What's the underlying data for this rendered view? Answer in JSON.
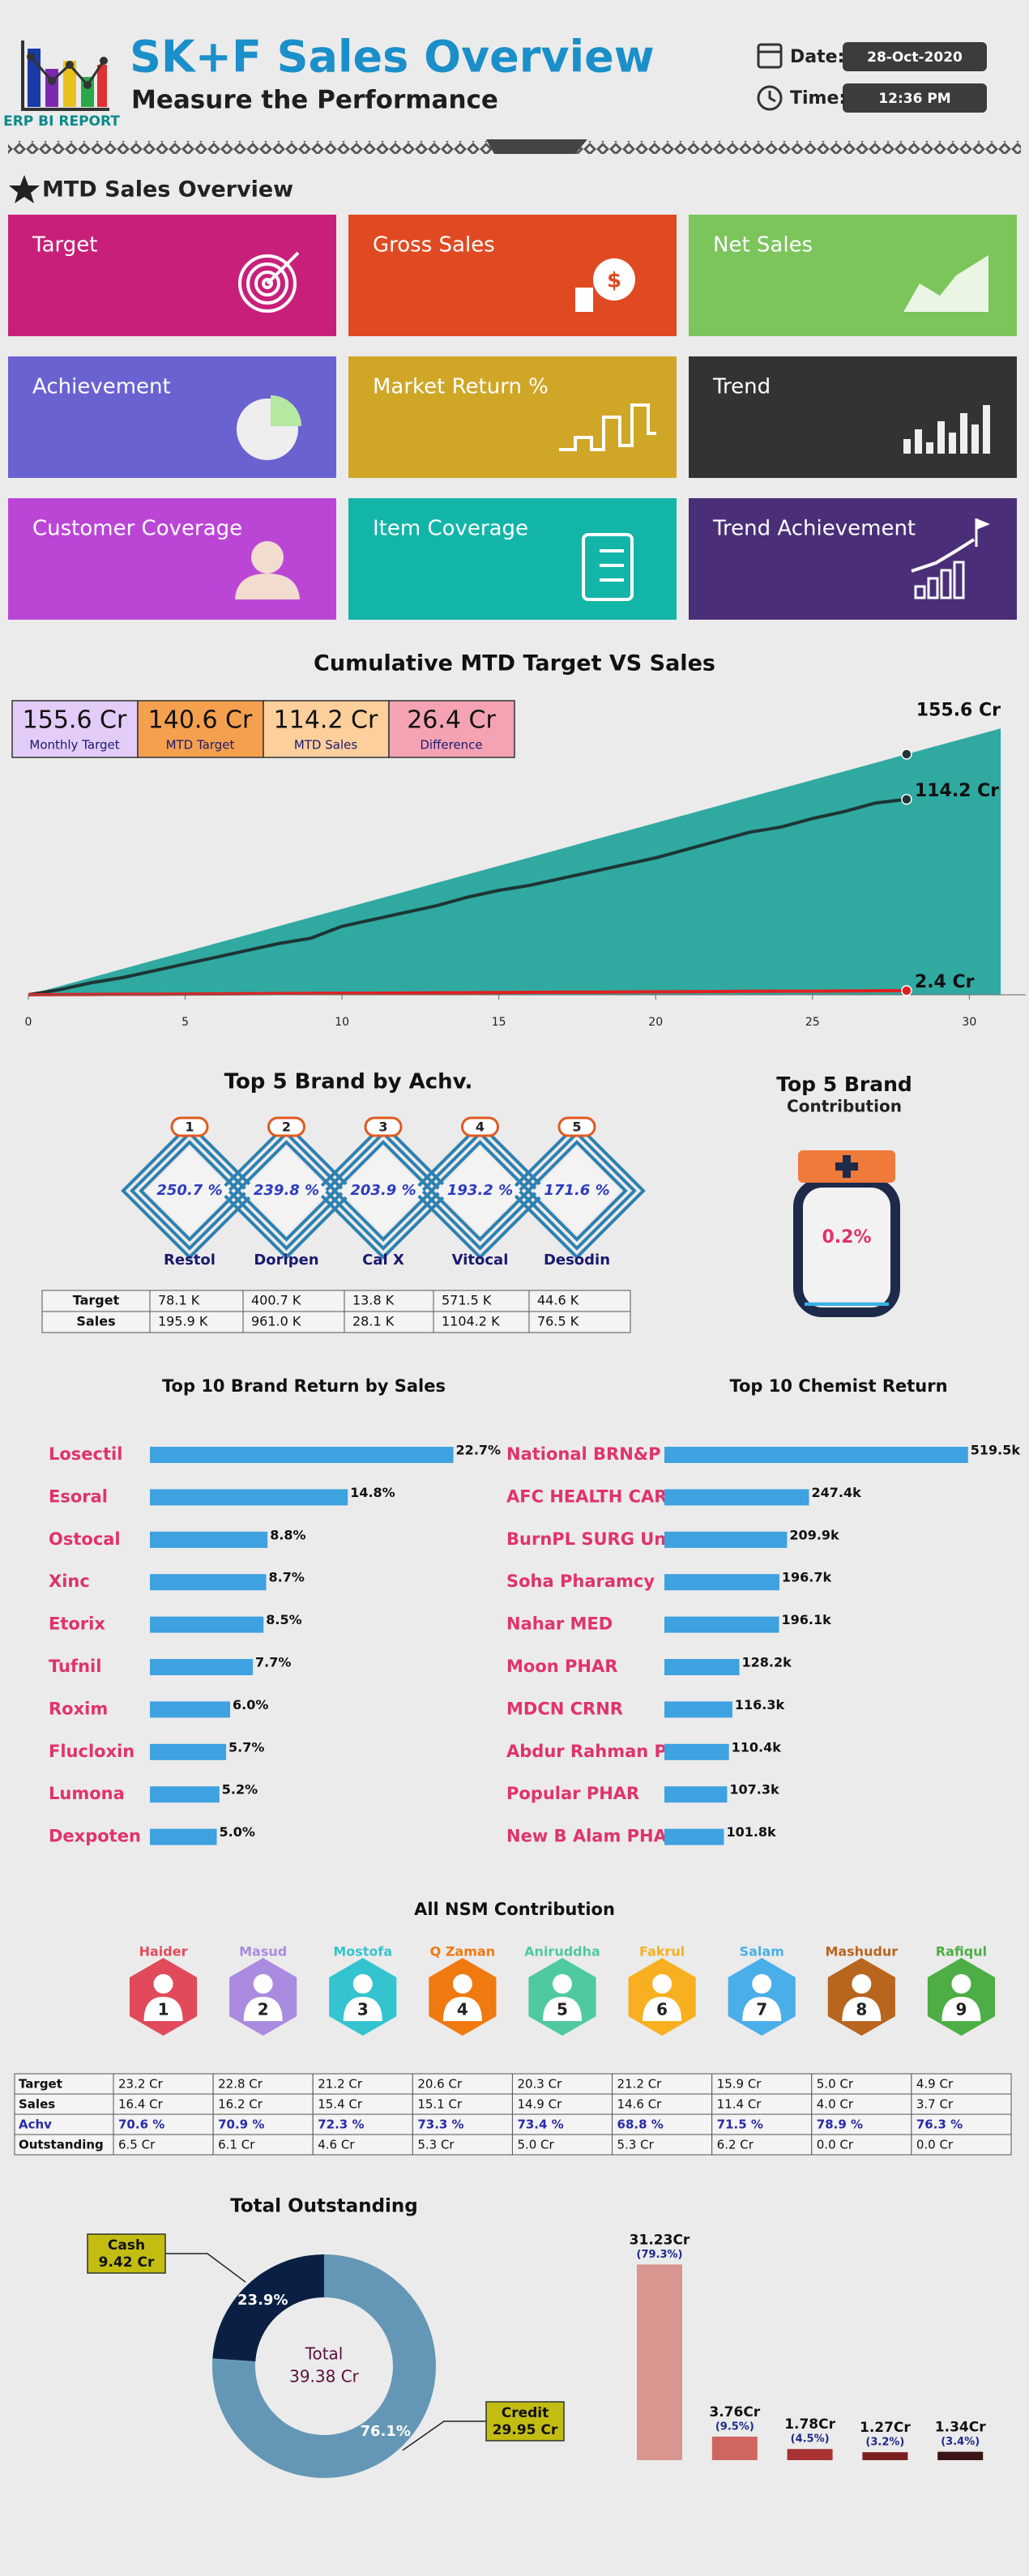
{
  "header": {
    "logo_text": "ERP BI REPORT",
    "title": "SK+F Sales Overview",
    "subtitle": "Measure the Performance",
    "date_label": "Date:",
    "date": "28-Oct-2020",
    "time_label": "Time:",
    "time": "12:36 PM"
  },
  "mtd_section": {
    "title": "MTD Sales Overview",
    "tiles": [
      {
        "label": "Target",
        "color": "#c8207a"
      },
      {
        "label": "Gross Sales",
        "color": "#e04a22"
      },
      {
        "label": "Net Sales",
        "color": "#7bc55b"
      },
      {
        "label": "Achievement",
        "color": "#6a62d0"
      },
      {
        "label": "Market Return %",
        "color": "#cfa626"
      },
      {
        "label": "Trend",
        "color": "#333333"
      },
      {
        "label": "Customer Coverage",
        "color": "#bb46d6"
      },
      {
        "label": "Item Coverage",
        "color": "#13b5a8"
      },
      {
        "label": "Trend Achievement",
        "color": "#4a2f78"
      }
    ]
  },
  "chart_data": [
    {
      "type": "area",
      "title": "Cumulative MTD Target VS Sales",
      "kpis": [
        {
          "value": "155.6 Cr",
          "label": "Monthly Target",
          "color": "#e3ccf7"
        },
        {
          "value": "140.6 Cr",
          "label": "MTD Target",
          "color": "#f5a04e"
        },
        {
          "value": "114.2 Cr",
          "label": "MTD Sales",
          "color": "#fccf9b"
        },
        {
          "value": "26.4 Cr",
          "label": "Difference",
          "color": "#f5a3b3"
        }
      ],
      "x": [
        0,
        1,
        2,
        3,
        4,
        5,
        6,
        7,
        8,
        9,
        10,
        11,
        12,
        13,
        14,
        15,
        16,
        17,
        18,
        19,
        20,
        21,
        22,
        23,
        24,
        25,
        26,
        27,
        28,
        29,
        30,
        31
      ],
      "xlim": [
        0,
        31.8
      ],
      "xticks": [
        0,
        5,
        10,
        15,
        20,
        25,
        30
      ],
      "ylim": [
        0,
        160
      ],
      "series": [
        {
          "color": "#30a9a1",
          "fill": true,
          "end_label": "155.6 Cr",
          "values": [
            0,
            5.0,
            10.0,
            15.1,
            20.1,
            25.1,
            30.1,
            35.1,
            40.2,
            45.2,
            50.2,
            55.2,
            60.2,
            65.3,
            70.3,
            75.3,
            80.3,
            85.3,
            90.4,
            95.4,
            100.4,
            105.4,
            110.4,
            115.5,
            120.5,
            125.5,
            130.5,
            135.5,
            140.6,
            145.6,
            150.6,
            155.6
          ]
        },
        {
          "color": "#1d3535",
          "end_label": "114.2 Cr",
          "values": [
            0,
            3,
            7,
            10,
            14,
            18,
            22,
            26,
            30,
            33,
            40,
            44,
            48,
            52,
            57,
            61,
            64,
            68,
            72,
            76,
            80,
            85,
            90,
            95,
            98,
            103,
            107,
            112,
            114.2,
            null,
            null,
            null
          ]
        },
        {
          "color": "#e02020",
          "end_label": "2.4 Cr",
          "values": [
            0,
            0.1,
            0.2,
            0.3,
            0.3,
            0.4,
            0.5,
            0.6,
            0.7,
            0.8,
            0.9,
            0.9,
            1.0,
            1.1,
            1.2,
            1.3,
            1.4,
            1.5,
            1.5,
            1.6,
            1.7,
            1.8,
            1.9,
            2.0,
            2.1,
            2.1,
            2.2,
            2.3,
            2.4,
            null,
            null,
            null
          ]
        }
      ]
    },
    {
      "type": "diamond",
      "title": "Top 5 Brand by Achv.",
      "categories": [
        "Restol",
        "Doripen",
        "Cal X",
        "Vitocal",
        "Desodin"
      ],
      "ranks": [
        1,
        2,
        3,
        4,
        5
      ],
      "values": [
        250.7,
        239.8,
        203.9,
        193.2,
        171.6
      ],
      "value_labels": [
        "250.7 %",
        "239.8 %",
        "203.9 %",
        "193.2 %",
        "171.6 %"
      ],
      "table": {
        "rows": [
          [
            "Target",
            "78.1 K",
            "400.7 K",
            "13.8 K",
            "571.5 K",
            "44.6 K"
          ],
          [
            "Sales",
            "195.9 K",
            "961.0 K",
            "28.1 K",
            "1104.2 K",
            "76.5 K"
          ]
        ]
      }
    },
    {
      "type": "gauge",
      "title": "Top 5 Brand",
      "subtitle": "Contribution",
      "value": 0.2,
      "value_label": "0.2%",
      "ylim": [
        0,
        100
      ]
    },
    {
      "type": "hbar",
      "title": "Top 10 Brand Return by Sales",
      "categories": [
        "Losectil",
        "Esoral",
        "Ostocal",
        "Xinc",
        "Etorix",
        "Tufnil",
        "Roxim",
        "Flucloxin",
        "Lumona",
        "Dexpoten"
      ],
      "values": [
        22.7,
        14.8,
        8.8,
        8.7,
        8.5,
        7.7,
        6.0,
        5.7,
        5.2,
        5.0
      ],
      "value_labels": [
        "22.7%",
        "14.8%",
        "8.8%",
        "8.7%",
        "8.5%",
        "7.7%",
        "6.0%",
        "5.7%",
        "5.2%",
        "5.0%"
      ],
      "color": "#3ea1e0",
      "xlim": [
        0,
        26
      ]
    },
    {
      "type": "hbar",
      "title": "Top 10 Chemist Return",
      "categories": [
        "National BRN&P",
        "AFC HEALTH CAR",
        "BurnPL SURG Un",
        "Soha Pharamcy",
        "Nahar MED",
        "Moon PHAR",
        "MDCN CRNR",
        "Abdur Rahman P",
        "Popular PHAR",
        "New B Alam PHA"
      ],
      "values": [
        519.5,
        247.4,
        209.9,
        196.7,
        196.1,
        128.2,
        116.3,
        110.4,
        107.3,
        101.8
      ],
      "value_labels": [
        "519.5k",
        "247.4k",
        "209.9k",
        "196.7k",
        "196.1k",
        "128.2k",
        "116.3k",
        "110.4k",
        "107.3k",
        "101.8k"
      ],
      "color": "#3ea1e0",
      "xlim": [
        0,
        560
      ]
    },
    {
      "type": "table",
      "title": "All NSM Contribution",
      "columns": [
        {
          "name": "Haider",
          "color": "#e04a5a"
        },
        {
          "name": "Masud",
          "color": "#a98be0"
        },
        {
          "name": "Mostofa",
          "color": "#33c4d0"
        },
        {
          "name": "Q Zaman",
          "color": "#f07a10"
        },
        {
          "name": "Aniruddha",
          "color": "#4ec9a0"
        },
        {
          "name": "Fakrul",
          "color": "#f8b020"
        },
        {
          "name": "Salam",
          "color": "#4aaee8"
        },
        {
          "name": "Mashudur",
          "color": "#b8651e"
        },
        {
          "name": "Rafiqul",
          "color": "#4cae44"
        }
      ],
      "ranks": [
        1,
        2,
        3,
        4,
        5,
        6,
        7,
        8,
        9
      ],
      "rows": [
        {
          "label": "Target",
          "cells": [
            "23.2 Cr",
            "22.8 Cr",
            "21.2 Cr",
            "20.6 Cr",
            "20.3 Cr",
            "21.2 Cr",
            "15.9 Cr",
            "5.0 Cr",
            "4.9 Cr"
          ]
        },
        {
          "label": "Sales",
          "cells": [
            "16.4 Cr",
            "16.2 Cr",
            "15.4 Cr",
            "15.1 Cr",
            "14.9 Cr",
            "14.6 Cr",
            "11.4 Cr",
            "4.0 Cr",
            "3.7 Cr"
          ]
        },
        {
          "label": "Achv",
          "color": "#2a2aa8",
          "cells": [
            "70.6 %",
            "70.9 %",
            "72.3 %",
            "73.3 %",
            "73.4 %",
            "68.8 %",
            "71.5 %",
            "78.9 %",
            "76.3 %"
          ]
        },
        {
          "label": "Outstanding",
          "cells": [
            "6.5 Cr",
            "6.1 Cr",
            "4.6 Cr",
            "5.3 Cr",
            "5.0 Cr",
            "5.3 Cr",
            "6.2 Cr",
            "0.0 Cr",
            "0.0 Cr"
          ]
        }
      ]
    },
    {
      "type": "donut",
      "title": "Total Outstanding",
      "categories": [
        "Cash",
        "Credit"
      ],
      "values": [
        23.9,
        76.1
      ],
      "value_labels": [
        "23.9%",
        "76.1%"
      ],
      "amount_labels": [
        "9.42 Cr",
        "29.95 Cr"
      ],
      "colors": [
        "#0b1f44",
        "#6497b5"
      ],
      "center_label": "Total",
      "center_value": "39.38 Cr",
      "callout_color": "#c3bd12"
    },
    {
      "type": "bar",
      "values": [
        31.23,
        3.76,
        1.78,
        1.27,
        1.34
      ],
      "value_labels": [
        "31.23Cr",
        "3.76Cr",
        "1.78Cr",
        "1.27Cr",
        "1.34Cr"
      ],
      "share_labels": [
        "(79.3%)",
        "(9.5%)",
        "(4.5%)",
        "(3.2%)",
        "(3.4%)"
      ],
      "colors": [
        "#d9958f",
        "#d06660",
        "#a83232",
        "#7a2020",
        "#3a1515"
      ],
      "ylim": [
        0,
        34
      ]
    }
  ]
}
